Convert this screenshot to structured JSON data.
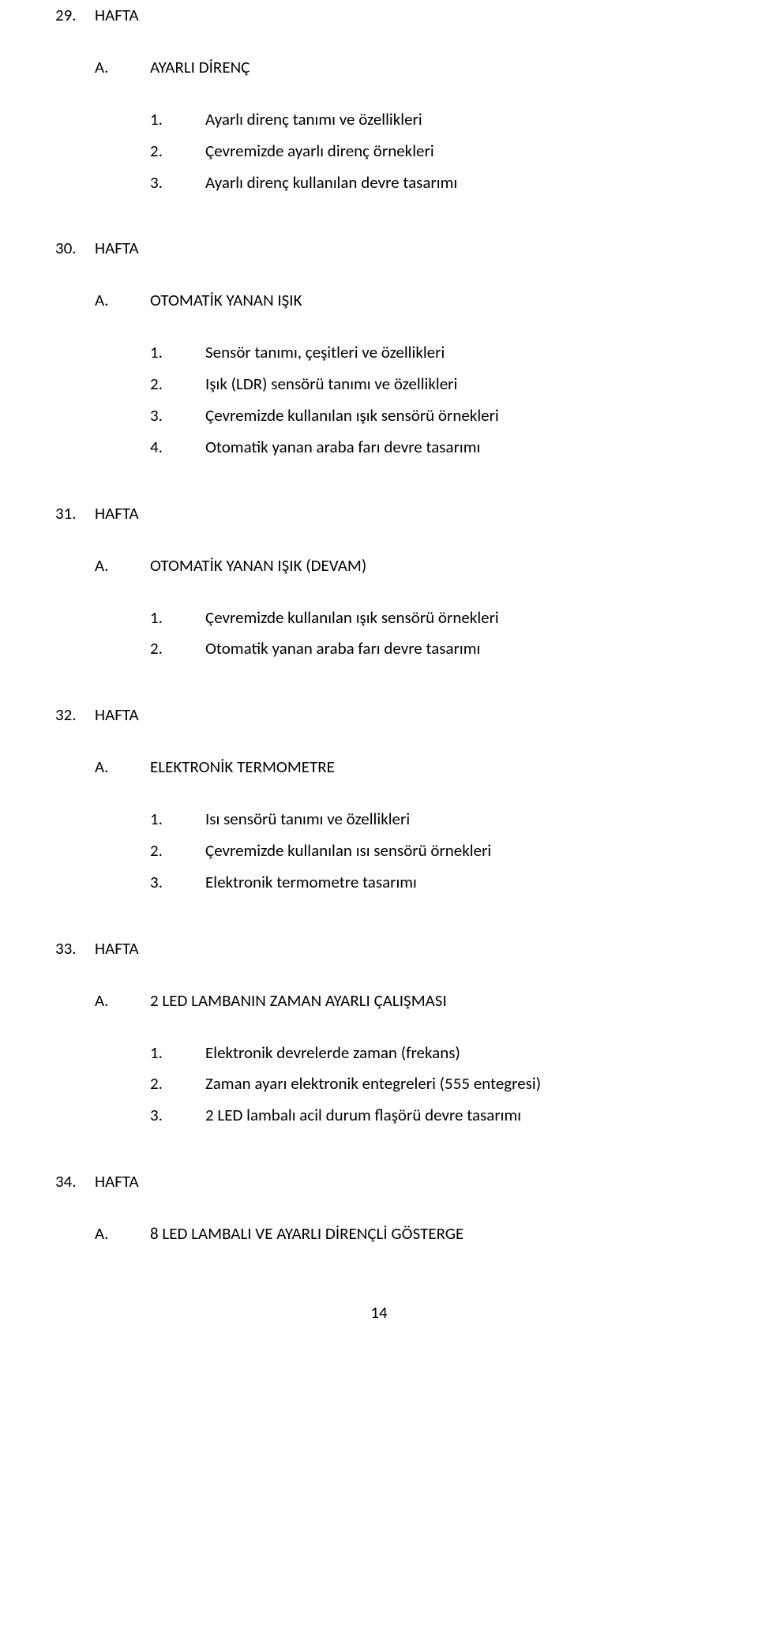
{
  "sections": [
    {
      "num": "29.",
      "label": "HAFTA",
      "subs": [
        {
          "num": "A.",
          "label": "AYARLI DİRENÇ",
          "items": [
            {
              "num": "1.",
              "text": "Ayarlı direnç tanımı ve özellikleri"
            },
            {
              "num": "2.",
              "text": "Çevremizde ayarlı direnç örnekleri"
            },
            {
              "num": "3.",
              "text": "Ayarlı direnç kullanılan devre tasarımı"
            }
          ]
        }
      ]
    },
    {
      "num": "30.",
      "label": "HAFTA",
      "subs": [
        {
          "num": "A.",
          "label": "OTOMATİK YANAN IŞIK",
          "items": [
            {
              "num": "1.",
              "text": "Sensör tanımı, çeşitleri ve özellikleri"
            },
            {
              "num": "2.",
              "text": "Işık (LDR) sensörü tanımı ve özellikleri"
            },
            {
              "num": "3.",
              "text": "Çevremizde kullanılan ışık sensörü örnekleri"
            },
            {
              "num": "4.",
              "text": "Otomatik yanan araba farı devre tasarımı"
            }
          ]
        }
      ]
    },
    {
      "num": "31.",
      "label": "HAFTA",
      "subs": [
        {
          "num": "A.",
          "label": "OTOMATİK YANAN IŞIK (DEVAM)",
          "items": [
            {
              "num": "1.",
              "text": "Çevremizde kullanılan ışık sensörü örnekleri"
            },
            {
              "num": "2.",
              "text": "Otomatik yanan araba farı devre tasarımı"
            }
          ]
        }
      ]
    },
    {
      "num": "32.",
      "label": "HAFTA",
      "subs": [
        {
          "num": "A.",
          "label": "ELEKTRONİK TERMOMETRE",
          "items": [
            {
              "num": "1.",
              "text": "Isı sensörü tanımı ve özellikleri"
            },
            {
              "num": "2.",
              "text": "Çevremizde kullanılan ısı sensörü örnekleri"
            },
            {
              "num": "3.",
              "text": "Elektronik termometre tasarımı"
            }
          ]
        }
      ]
    },
    {
      "num": "33.",
      "label": "HAFTA",
      "subs": [
        {
          "num": "A.",
          "label": "2 LED LAMBANIN ZAMAN AYARLI ÇALIŞMASI",
          "items": [
            {
              "num": "1.",
              "text": "Elektronik devrelerde zaman (frekans)"
            },
            {
              "num": "2.",
              "text": "Zaman ayarı elektronik entegreleri (555 entegresi)"
            },
            {
              "num": "3.",
              "text": "2 LED lambalı acil durum flaşörü devre tasarımı"
            }
          ]
        }
      ]
    },
    {
      "num": "34.",
      "label": "HAFTA",
      "subs": [
        {
          "num": "A.",
          "label": "8 LED LAMBALI VE AYARLI DİRENÇLİ GÖSTERGE",
          "items": []
        }
      ]
    }
  ],
  "page_number": "14"
}
